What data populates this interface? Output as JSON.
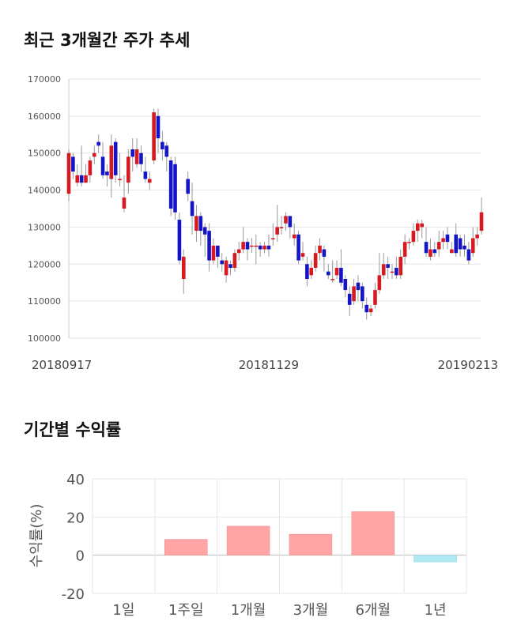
{
  "chart_data": [
    {
      "type": "candlestick",
      "title": "최근 3개월간 주가 추세",
      "categories": [
        "20180917",
        null,
        null,
        null,
        null,
        null,
        null,
        null,
        null,
        null,
        null,
        null,
        null,
        null,
        null,
        null,
        null,
        null,
        null,
        null,
        null,
        null,
        null,
        null,
        null,
        null,
        null,
        null,
        null,
        null,
        null,
        null,
        null,
        null,
        null,
        null,
        null,
        null,
        null,
        null,
        null,
        null,
        null,
        null,
        null,
        null,
        null,
        "20181129",
        null,
        null,
        null,
        null,
        null,
        null,
        null,
        null,
        null,
        null,
        null,
        null,
        null,
        null,
        null,
        null,
        null,
        null,
        null,
        null,
        null,
        null,
        null,
        null,
        null,
        null,
        null,
        null,
        null,
        null,
        null,
        null,
        null,
        null,
        null,
        null,
        null,
        null,
        null,
        null,
        null,
        null,
        null,
        null,
        null,
        null,
        null,
        null,
        null,
        "20190213"
      ],
      "open": [
        139000,
        149000,
        142000,
        144000,
        142000,
        144000,
        149000,
        153000,
        149000,
        145000,
        143000,
        153000,
        143000,
        135000,
        142000,
        151000,
        147000,
        150000,
        145000,
        142000,
        148000,
        160000,
        153000,
        152000,
        148000,
        147000,
        132000,
        116000,
        143000,
        137000,
        129000,
        133000,
        130000,
        129000,
        121000,
        125000,
        121000,
        117000,
        120000,
        119000,
        123000,
        124000,
        126000,
        125000,
        125000,
        125000,
        124000,
        125000,
        127000,
        128000,
        130000,
        131000,
        133000,
        127000,
        128000,
        122000,
        120000,
        117000,
        119000,
        123000,
        124000,
        118000,
        116000,
        117000,
        119000,
        116000,
        112000,
        110000,
        115000,
        114000,
        109000,
        107000,
        109000,
        113000,
        117000,
        120000,
        118000,
        119000,
        117000,
        122000,
        126000,
        126000,
        129000,
        130000,
        126000,
        122000,
        124000,
        124000,
        126000,
        128000,
        123000,
        128000,
        127000,
        125000,
        124000,
        123000,
        127000,
        129000
      ],
      "close": [
        150000,
        145000,
        144000,
        142000,
        144000,
        148000,
        150000,
        152000,
        144000,
        144000,
        152000,
        144000,
        143000,
        138000,
        149000,
        149000,
        151000,
        147000,
        143000,
        143000,
        161000,
        154000,
        151000,
        149000,
        135000,
        134000,
        121000,
        122000,
        139000,
        133000,
        133000,
        129000,
        128000,
        121000,
        125000,
        122000,
        120000,
        121000,
        119000,
        123000,
        124000,
        126000,
        124000,
        125000,
        125000,
        124000,
        125000,
        124000,
        127000,
        130000,
        130000,
        133000,
        130000,
        128000,
        121000,
        123000,
        116000,
        119000,
        123000,
        125000,
        122000,
        117000,
        116000,
        119000,
        115000,
        113000,
        109000,
        114000,
        113000,
        110000,
        107000,
        108000,
        113000,
        117000,
        120000,
        119000,
        118000,
        117000,
        122000,
        126000,
        126000,
        129000,
        131000,
        131000,
        123000,
        124000,
        123000,
        126000,
        127000,
        126000,
        124000,
        123000,
        124000,
        124000,
        121000,
        127000,
        128000,
        134000
      ],
      "high": [
        151000,
        150000,
        147000,
        152000,
        147000,
        149000,
        152000,
        155000,
        153000,
        147000,
        155000,
        154000,
        150000,
        144000,
        151000,
        154000,
        154000,
        152000,
        149000,
        145000,
        162000,
        162000,
        156000,
        153000,
        149000,
        149000,
        134000,
        124000,
        145000,
        142000,
        136000,
        134000,
        131000,
        131000,
        127000,
        125000,
        123000,
        122000,
        121000,
        124000,
        126000,
        130000,
        127000,
        127000,
        128000,
        126000,
        126000,
        128000,
        131000,
        136000,
        133000,
        134000,
        133000,
        131000,
        129000,
        126000,
        122000,
        121000,
        125000,
        127000,
        125000,
        120000,
        121000,
        121000,
        124000,
        117000,
        114000,
        116000,
        117000,
        115000,
        111000,
        109000,
        115000,
        123000,
        123000,
        122000,
        120000,
        122000,
        124000,
        128000,
        127000,
        131000,
        132000,
        132000,
        130000,
        127000,
        126000,
        129000,
        129000,
        130000,
        126000,
        131000,
        128000,
        128000,
        126000,
        130000,
        130000,
        138000
      ],
      "low": [
        137000,
        143000,
        141000,
        141000,
        142000,
        142000,
        147000,
        150000,
        143000,
        141000,
        138000,
        142000,
        141000,
        134000,
        139000,
        145000,
        146000,
        145000,
        142000,
        140000,
        147000,
        150000,
        148000,
        145000,
        133000,
        132000,
        120000,
        112000,
        137000,
        128000,
        126000,
        125000,
        122000,
        118000,
        120000,
        119000,
        118000,
        115000,
        117000,
        118000,
        121000,
        123000,
        121000,
        123000,
        120000,
        122000,
        123000,
        122000,
        125000,
        126000,
        128000,
        129000,
        127000,
        125000,
        120000,
        121000,
        114000,
        116000,
        118000,
        121000,
        118000,
        116000,
        115000,
        116000,
        114000,
        111000,
        106000,
        109000,
        110000,
        108000,
        105000,
        106000,
        108000,
        112000,
        116000,
        116000,
        116000,
        116000,
        116000,
        120000,
        124000,
        125000,
        126000,
        127000,
        122000,
        121000,
        122000,
        122000,
        124000,
        124000,
        123000,
        122000,
        122000,
        122000,
        120000,
        122000,
        125000,
        128000
      ],
      "up_color": "#d71920",
      "down_color": "#1515c8",
      "ylim": [
        100000,
        170000
      ],
      "yticks": [
        100000,
        110000,
        120000,
        130000,
        140000,
        150000,
        160000,
        170000
      ],
      "grid": true
    },
    {
      "type": "bar",
      "title": "기간별 수익률",
      "y_label": "수익률(%)",
      "categories": [
        "1일",
        "1주일",
        "1개월",
        "3개월",
        "6개월",
        "1년"
      ],
      "values": [
        0,
        8.3,
        15.2,
        11.0,
        22.8,
        -3.5
      ],
      "positive_color": "#ffa5a5",
      "negative_color": "#b0e8f4",
      "ylim": [
        -20,
        40
      ],
      "yticks": [
        -20,
        0,
        20,
        40
      ],
      "grid": true
    }
  ]
}
